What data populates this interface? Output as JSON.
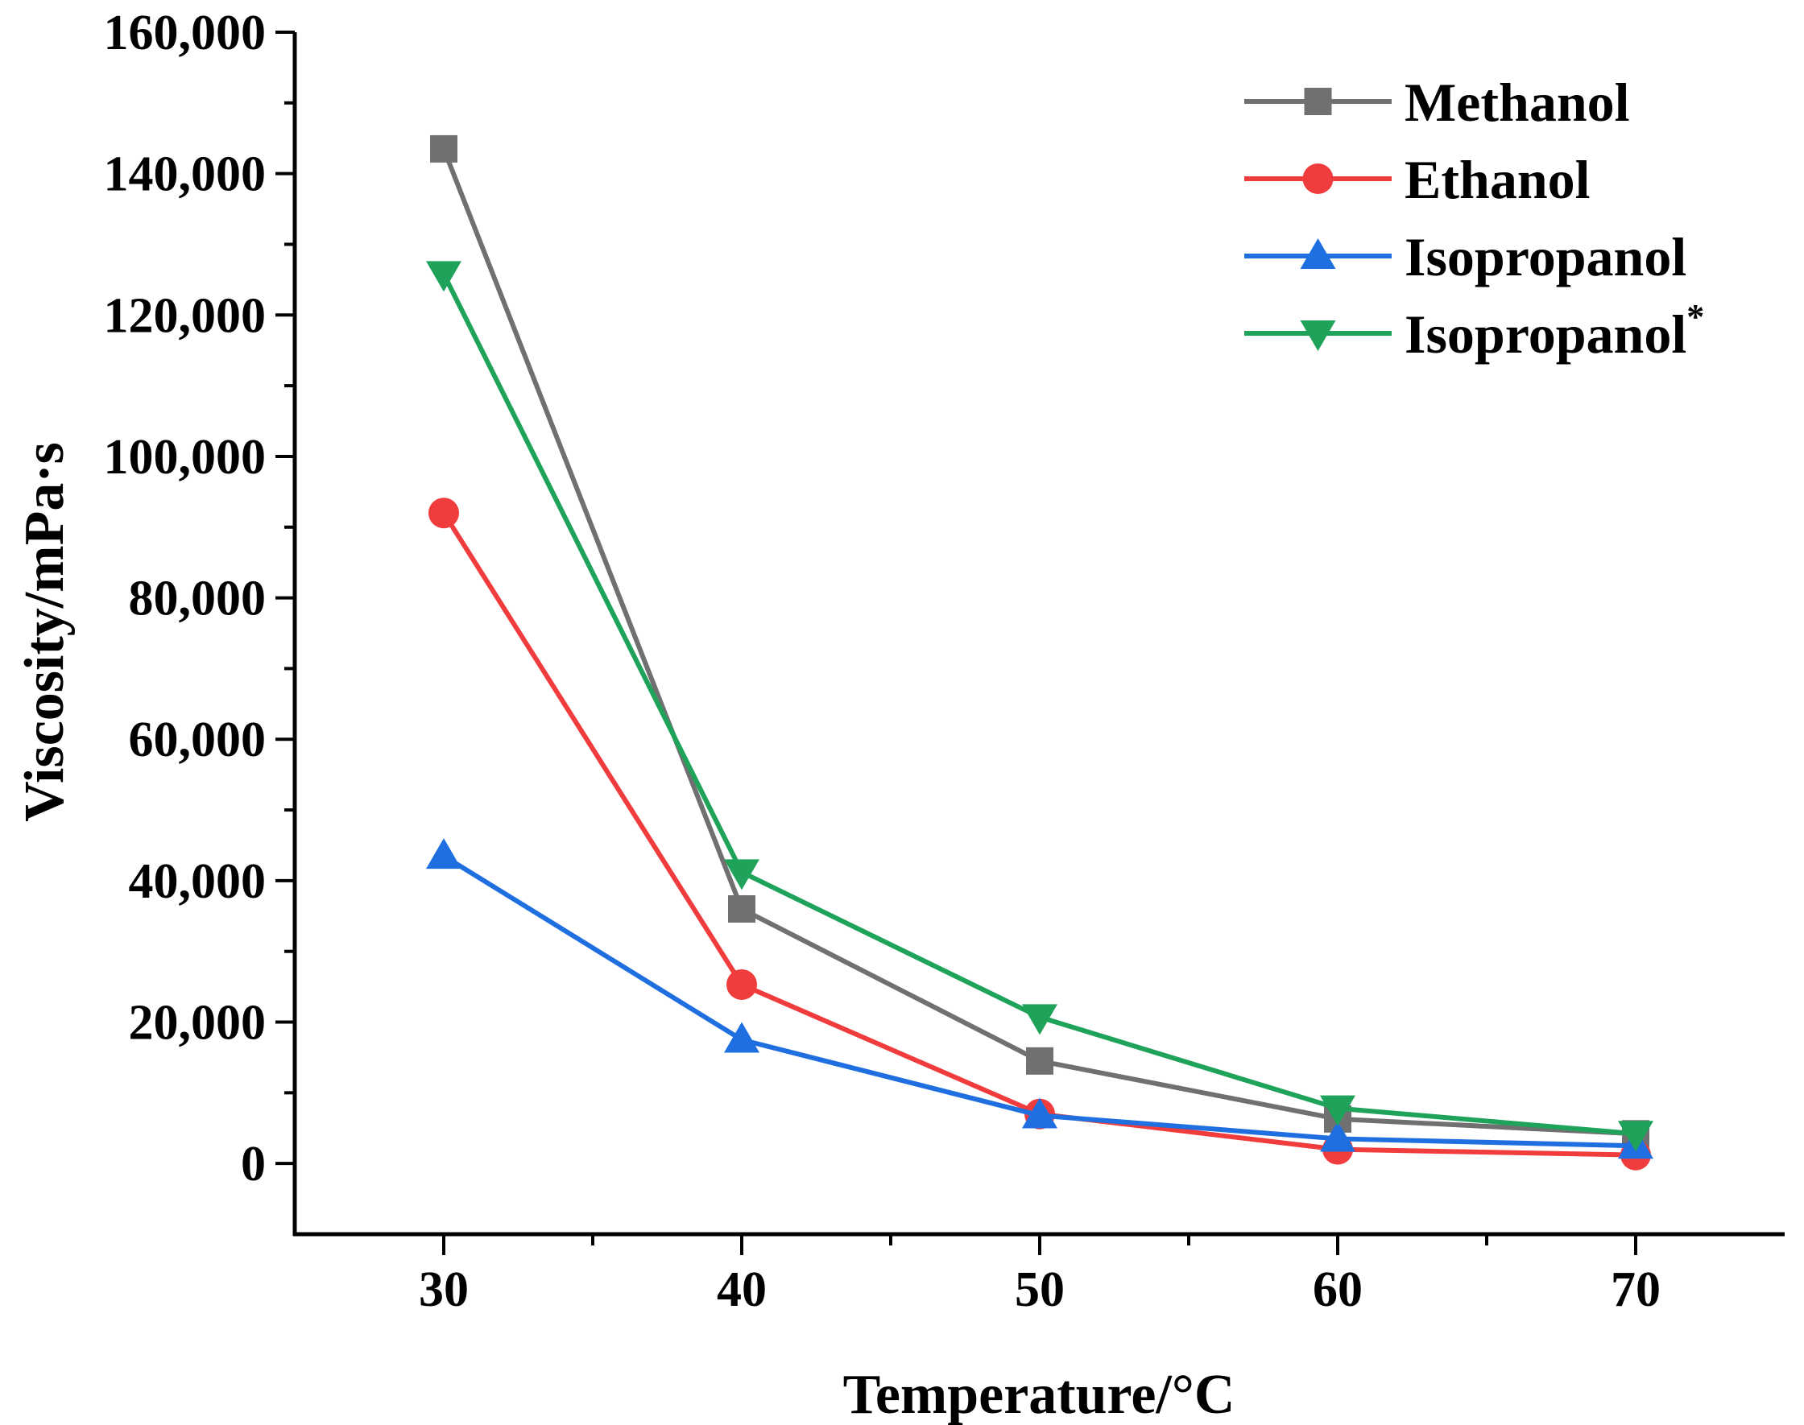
{
  "chart_data": {
    "type": "line",
    "title": "",
    "xlabel": "Temperature/°C",
    "ylabel": "Viscosity/mPa·s",
    "x": [
      30,
      40,
      50,
      60,
      70
    ],
    "xlim": [
      25,
      75
    ],
    "ylim": [
      -10000,
      160000
    ],
    "xticks": [
      30,
      40,
      50,
      60,
      70
    ],
    "xtick_labels": [
      "30",
      "40",
      "50",
      "60",
      "70"
    ],
    "yticks": [
      0,
      20000,
      40000,
      60000,
      80000,
      100000,
      120000,
      140000,
      160000
    ],
    "ytick_labels": [
      "0",
      "20,000",
      "40,000",
      "60,000",
      "80,000",
      "100,000",
      "120,000",
      "140,000",
      "160,000"
    ],
    "legend_position": "top-right",
    "series": [
      {
        "name": "Methanol",
        "marker": "square",
        "color": "#707070",
        "values": [
          143500,
          36000,
          14500,
          6300,
          4200
        ]
      },
      {
        "name": "Ethanol",
        "marker": "circle",
        "color": "#f03c3c",
        "values": [
          92000,
          25300,
          7000,
          2000,
          1200
        ]
      },
      {
        "name": "Isopropanol",
        "marker": "triangle-up",
        "color": "#1f6fe0",
        "values": [
          43500,
          17500,
          6800,
          3500,
          2500
        ]
      },
      {
        "name": "Isopropanol",
        "superscript": "*",
        "marker": "triangle-down",
        "color": "#1fa35b",
        "values": [
          125800,
          41200,
          20700,
          7800,
          4200
        ]
      }
    ]
  }
}
